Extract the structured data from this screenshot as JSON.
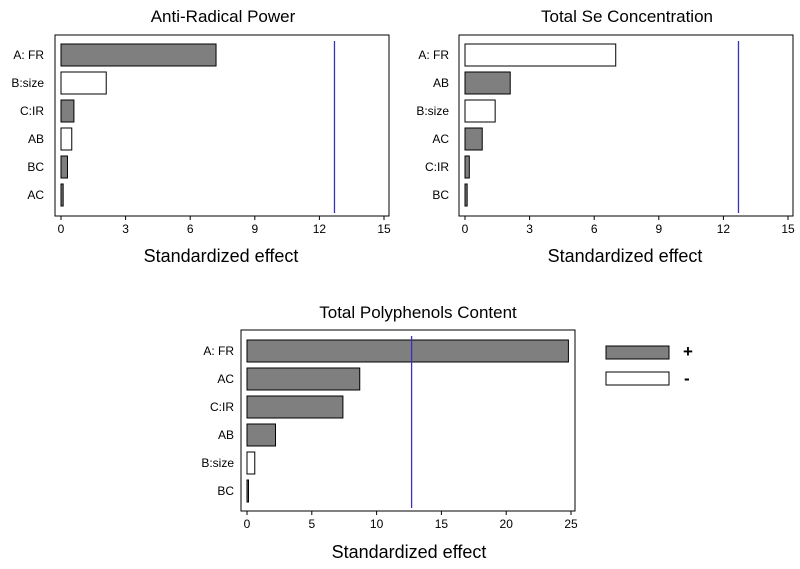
{
  "colors": {
    "positive": "#7f7f7f",
    "negative": "#ffffff",
    "reference_line": "#3a33b8"
  },
  "legend": [
    {
      "label": "+",
      "sign": "positive"
    },
    {
      "label": "-",
      "sign": "negative"
    }
  ],
  "chart_data": [
    {
      "type": "bar",
      "orientation": "horizontal",
      "title": "Anti-Radical Power",
      "xlabel": "Standardized effect",
      "xlim": [
        0,
        15
      ],
      "xticks": [
        0,
        3,
        6,
        9,
        12,
        15
      ],
      "reference_line": 12.7,
      "grid": false,
      "categories": [
        "A: FR",
        "B:size",
        "C:IR",
        "AB",
        "BC",
        "AC"
      ],
      "values": [
        7.2,
        2.1,
        0.6,
        0.5,
        0.3,
        0.1
      ],
      "signs": [
        "positive",
        "negative",
        "positive",
        "negative",
        "positive",
        "positive"
      ]
    },
    {
      "type": "bar",
      "orientation": "horizontal",
      "title": "Total Se Concentration",
      "xlabel": "Standardized effect",
      "xlim": [
        0,
        15
      ],
      "xticks": [
        0,
        3,
        6,
        9,
        12,
        15
      ],
      "reference_line": 12.7,
      "grid": false,
      "categories": [
        "A: FR",
        "AB",
        "B:size",
        "AC",
        "C:IR",
        "BC"
      ],
      "values": [
        7.0,
        2.1,
        1.4,
        0.8,
        0.2,
        0.1
      ],
      "signs": [
        "negative",
        "positive",
        "negative",
        "positive",
        "positive",
        "positive"
      ]
    },
    {
      "type": "bar",
      "orientation": "horizontal",
      "title": "Total Polyphenols  Content",
      "xlabel": "Standardized effect",
      "xlim": [
        0,
        25
      ],
      "xticks": [
        0,
        5,
        10,
        15,
        20,
        25
      ],
      "reference_line": 12.7,
      "grid": false,
      "categories": [
        "A: FR",
        "AC",
        "C:IR",
        "AB",
        "B:size",
        "BC"
      ],
      "values": [
        24.8,
        8.7,
        7.4,
        2.2,
        0.6,
        0.1
      ],
      "signs": [
        "positive",
        "positive",
        "positive",
        "positive",
        "negative",
        "positive"
      ]
    }
  ]
}
